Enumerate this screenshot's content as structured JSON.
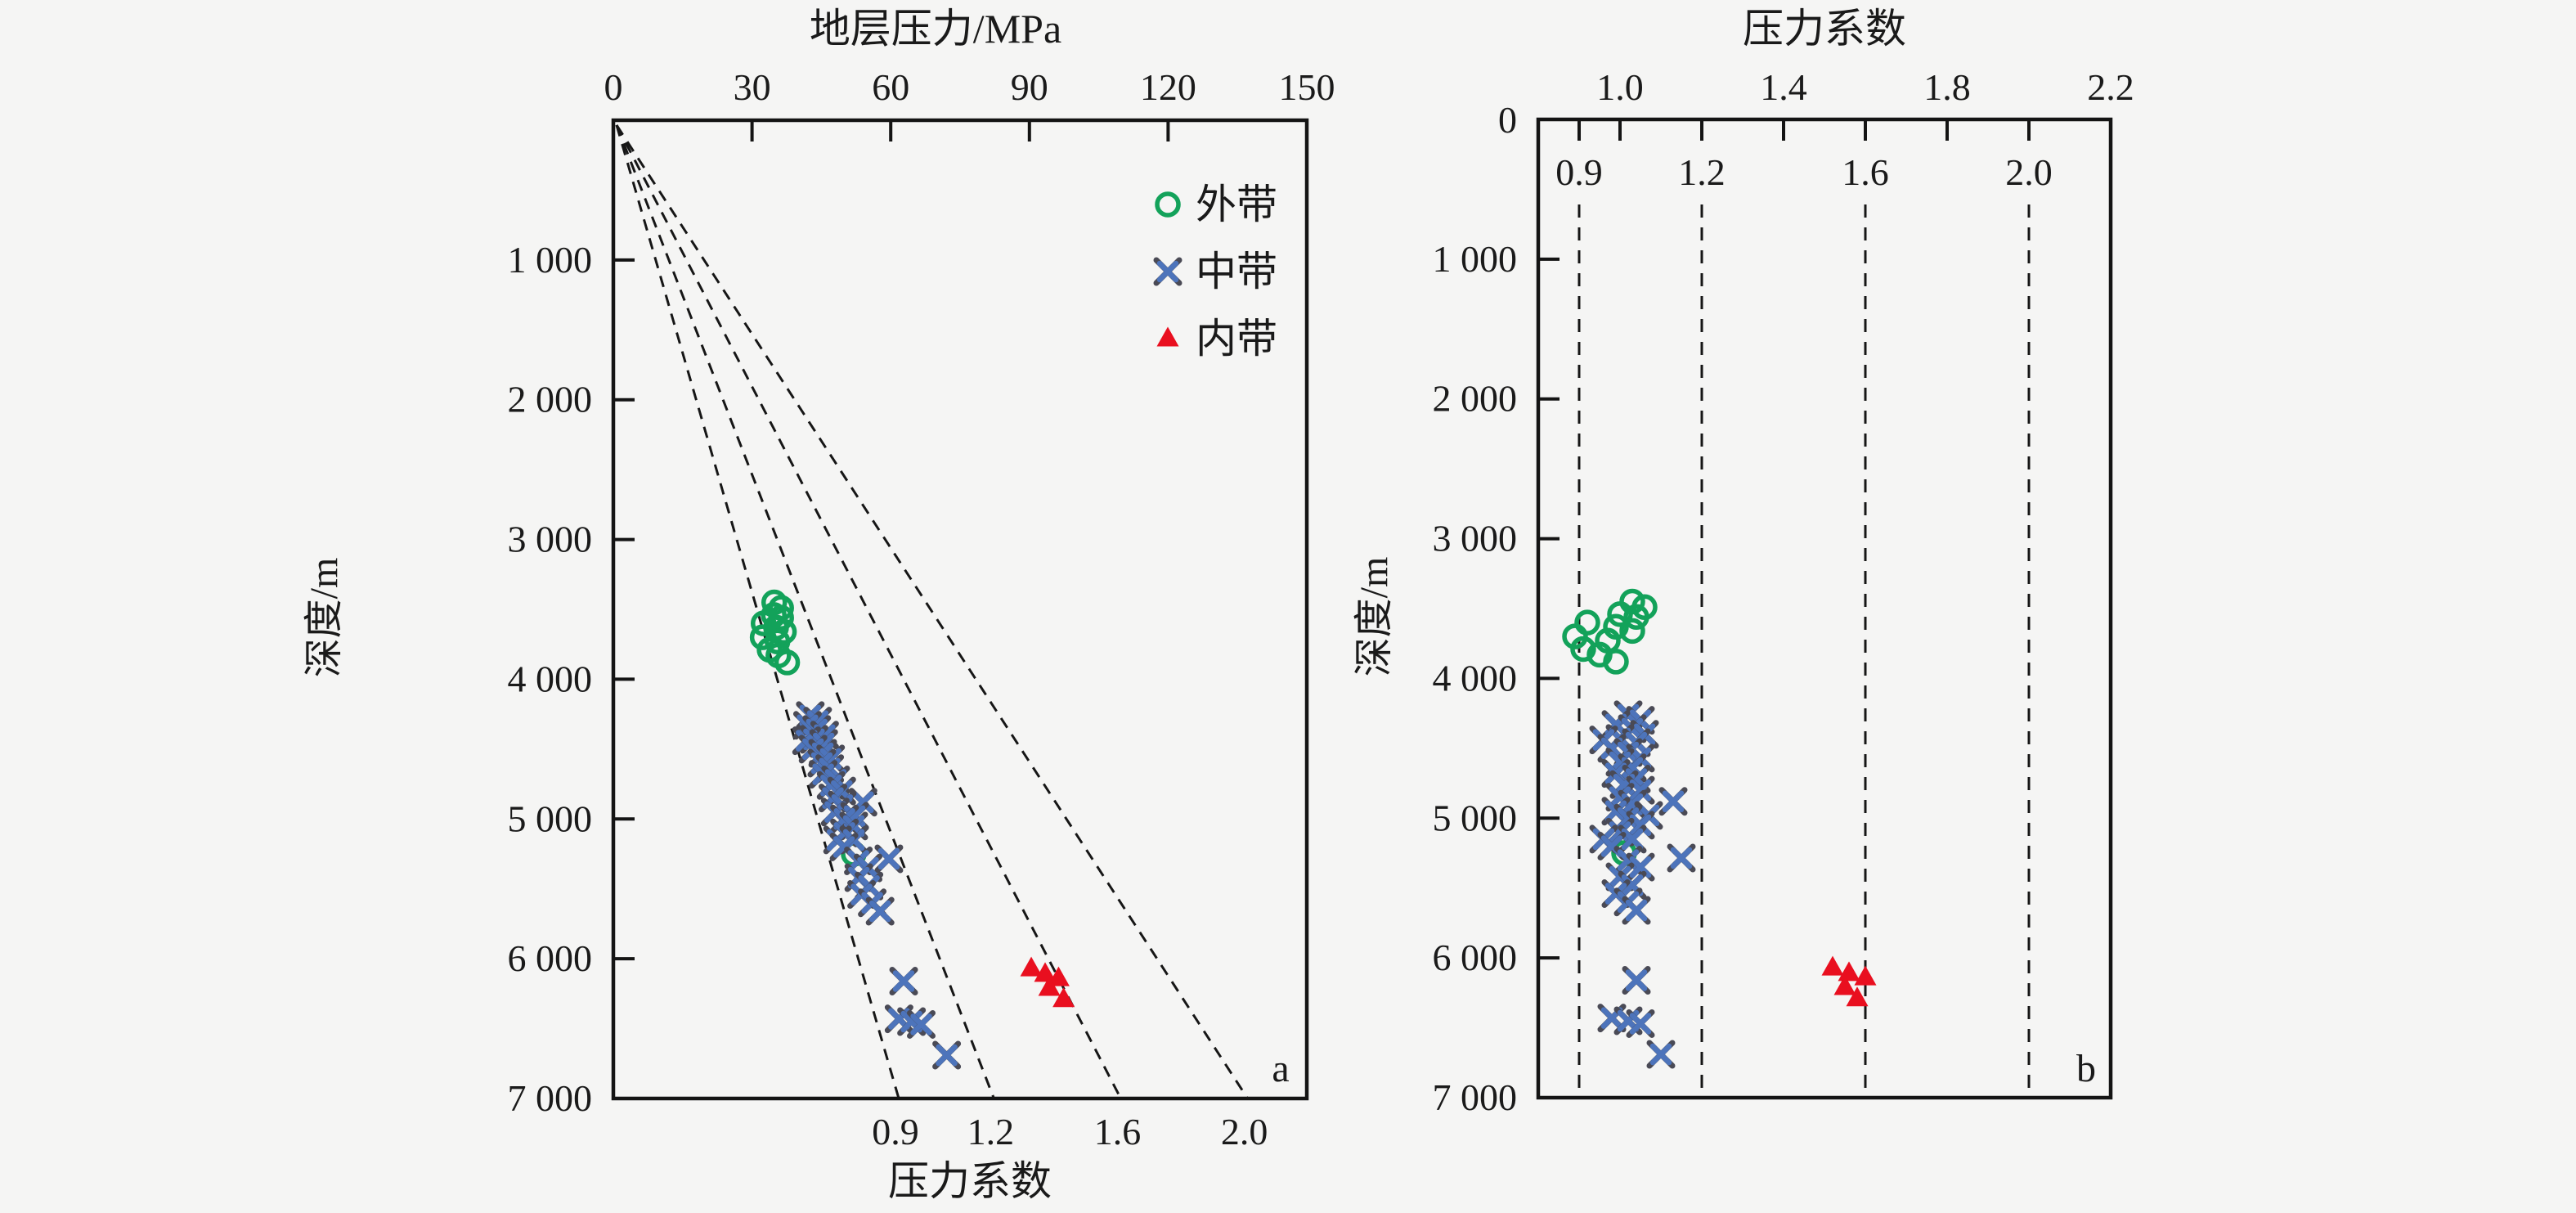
{
  "figure": {
    "background": "#f5f5f4",
    "text_color": "#1a1a1a",
    "axis_color": "#141414",
    "legend": {
      "items": [
        {
          "label": "外带",
          "marker": "circle",
          "color": "#13a25a"
        },
        {
          "label": "中带",
          "marker": "x",
          "color": "#4d74bb",
          "tip_color": "#4a4a55"
        },
        {
          "label": "内带",
          "marker": "triangle",
          "color": "#e90f1f"
        }
      ]
    }
  },
  "wells": {
    "outer": [
      {
        "depth_m": 3450,
        "coeff": 1.03,
        "pressure_mpa": 34.8
      },
      {
        "depth_m": 3490,
        "coeff": 1.06,
        "pressure_mpa": 36.3
      },
      {
        "depth_m": 3540,
        "coeff": 1.0,
        "pressure_mpa": 34.7
      },
      {
        "depth_m": 3560,
        "coeff": 1.04,
        "pressure_mpa": 36.3
      },
      {
        "depth_m": 3600,
        "coeff": 0.92,
        "pressure_mpa": 32.5
      },
      {
        "depth_m": 3630,
        "coeff": 0.99,
        "pressure_mpa": 35.2
      },
      {
        "depth_m": 3660,
        "coeff": 1.03,
        "pressure_mpa": 36.9
      },
      {
        "depth_m": 3700,
        "coeff": 0.89,
        "pressure_mpa": 32.3
      },
      {
        "depth_m": 3730,
        "coeff": 0.97,
        "pressure_mpa": 35.5
      },
      {
        "depth_m": 3790,
        "coeff": 0.91,
        "pressure_mpa": 33.8
      },
      {
        "depth_m": 3830,
        "coeff": 0.95,
        "pressure_mpa": 35.7
      },
      {
        "depth_m": 3880,
        "coeff": 0.99,
        "pressure_mpa": 37.6
      },
      {
        "depth_m": 5250,
        "coeff": 1.01,
        "pressure_mpa": 52.0
      }
    ],
    "middle": [
      {
        "depth_m": 4260,
        "coeff": 1.02,
        "pressure_mpa": 42.6
      },
      {
        "depth_m": 4300,
        "coeff": 1.05,
        "pressure_mpa": 44.2
      },
      {
        "depth_m": 4330,
        "coeff": 0.99,
        "pressure_mpa": 42.0
      },
      {
        "depth_m": 4360,
        "coeff": 1.03,
        "pressure_mpa": 44.0
      },
      {
        "depth_m": 4400,
        "coeff": 1.06,
        "pressure_mpa": 45.7
      },
      {
        "depth_m": 4430,
        "coeff": 1.0,
        "pressure_mpa": 43.4
      },
      {
        "depth_m": 4440,
        "coeff": 0.96,
        "pressure_mpa": 41.8
      },
      {
        "depth_m": 4460,
        "coeff": 1.04,
        "pressure_mpa": 45.5
      },
      {
        "depth_m": 4500,
        "coeff": 0.98,
        "pressure_mpa": 43.2
      },
      {
        "depth_m": 4530,
        "coeff": 1.02,
        "pressure_mpa": 45.3
      },
      {
        "depth_m": 4570,
        "coeff": 1.05,
        "pressure_mpa": 47.0
      },
      {
        "depth_m": 4600,
        "coeff": 1.0,
        "pressure_mpa": 45.1
      },
      {
        "depth_m": 4640,
        "coeff": 1.03,
        "pressure_mpa": 46.8
      },
      {
        "depth_m": 4680,
        "coeff": 0.99,
        "pressure_mpa": 45.4
      },
      {
        "depth_m": 4720,
        "coeff": 1.04,
        "pressure_mpa": 48.1
      },
      {
        "depth_m": 4760,
        "coeff": 1.01,
        "pressure_mpa": 47.1
      },
      {
        "depth_m": 4800,
        "coeff": 1.05,
        "pressure_mpa": 49.4
      },
      {
        "depth_m": 4850,
        "coeff": 1.0,
        "pressure_mpa": 47.5
      },
      {
        "depth_m": 4880,
        "coeff": 1.13,
        "pressure_mpa": 54.0
      },
      {
        "depth_m": 4900,
        "coeff": 1.03,
        "pressure_mpa": 49.5
      },
      {
        "depth_m": 4950,
        "coeff": 0.99,
        "pressure_mpa": 48.0
      },
      {
        "depth_m": 4980,
        "coeff": 1.07,
        "pressure_mpa": 52.2
      },
      {
        "depth_m": 5000,
        "coeff": 1.02,
        "pressure_mpa": 50.0
      },
      {
        "depth_m": 5050,
        "coeff": 1.05,
        "pressure_mpa": 52.0
      },
      {
        "depth_m": 5100,
        "coeff": 1.0,
        "pressure_mpa": 50.0
      },
      {
        "depth_m": 5150,
        "coeff": 0.96,
        "pressure_mpa": 48.5
      },
      {
        "depth_m": 5150,
        "coeff": 1.03,
        "pressure_mpa": 52.0
      },
      {
        "depth_m": 5200,
        "coeff": 0.98,
        "pressure_mpa": 49.9
      },
      {
        "depth_m": 5285,
        "coeff": 1.15,
        "pressure_mpa": 59.6
      },
      {
        "depth_m": 5300,
        "coeff": 1.02,
        "pressure_mpa": 53.0
      },
      {
        "depth_m": 5350,
        "coeff": 1.05,
        "pressure_mpa": 55.1
      },
      {
        "depth_m": 5420,
        "coeff": 1.0,
        "pressure_mpa": 53.1
      },
      {
        "depth_m": 5480,
        "coeff": 1.03,
        "pressure_mpa": 55.3
      },
      {
        "depth_m": 5540,
        "coeff": 0.99,
        "pressure_mpa": 53.7
      },
      {
        "depth_m": 5600,
        "coeff": 1.02,
        "pressure_mpa": 56.0
      },
      {
        "depth_m": 5660,
        "coeff": 1.04,
        "pressure_mpa": 57.7
      },
      {
        "depth_m": 6160,
        "coeff": 1.04,
        "pressure_mpa": 62.8
      },
      {
        "depth_m": 6430,
        "coeff": 0.98,
        "pressure_mpa": 61.8
      },
      {
        "depth_m": 6450,
        "coeff": 1.02,
        "pressure_mpa": 64.5
      },
      {
        "depth_m": 6470,
        "coeff": 1.05,
        "pressure_mpa": 66.6
      },
      {
        "depth_m": 6690,
        "coeff": 1.1,
        "pressure_mpa": 72.1
      }
    ],
    "inner": [
      {
        "depth_m": 6070,
        "coeff": 1.52,
        "pressure_mpa": 90.4
      },
      {
        "depth_m": 6110,
        "coeff": 1.56,
        "pressure_mpa": 93.4
      },
      {
        "depth_m": 6140,
        "coeff": 1.6,
        "pressure_mpa": 96.3
      },
      {
        "depth_m": 6210,
        "coeff": 1.55,
        "pressure_mpa": 94.3
      },
      {
        "depth_m": 6290,
        "coeff": 1.58,
        "pressure_mpa": 97.4
      }
    ]
  },
  "chart_data": [
    {
      "id": "a",
      "type": "scatter",
      "panel_label": "a",
      "top_axis": {
        "label": "地层压力/MPa",
        "ticks": [
          0,
          30,
          60,
          90,
          120,
          150
        ],
        "range": [
          0,
          150
        ]
      },
      "y_axis": {
        "label": "深度/m",
        "range": [
          0,
          7000
        ],
        "show_zero_label": false,
        "ticks": [
          {
            "v": 1000,
            "label": "1 000"
          },
          {
            "v": 2000,
            "label": "2 000"
          },
          {
            "v": 3000,
            "label": "3 000"
          },
          {
            "v": 4000,
            "label": "4 000"
          },
          {
            "v": 5000,
            "label": "5 000"
          },
          {
            "v": 6000,
            "label": "6 000"
          },
          {
            "v": 7000,
            "label": "7 000"
          }
        ]
      },
      "bottom_axis": {
        "label": "压力系数"
      },
      "guide_lines": {
        "style": "dashed",
        "coefficients": [
          0.9,
          1.2,
          1.6,
          2.0
        ],
        "labels": [
          "0.9",
          "1.2",
          "1.6",
          "2.0"
        ],
        "hydrostatic_gradient_mpa_per_m": 0.0098,
        "origin": "pressure 0 MPa at depth 0 m"
      },
      "series_x": "pressure_mpa",
      "legend_visible": true
    },
    {
      "id": "b",
      "type": "scatter",
      "panel_label": "b",
      "top_axis": {
        "label": "压力系数",
        "range": [
          0.8,
          2.2
        ],
        "major_ticks": [
          {
            "v": 1.0,
            "label": "1.0"
          },
          {
            "v": 1.4,
            "label": "1.4"
          },
          {
            "v": 1.8,
            "label": "1.8"
          },
          {
            "v": 2.2,
            "label": "2.2"
          }
        ],
        "minor_ticks": [
          0.9,
          1.0,
          1.2,
          1.4,
          1.6,
          1.8,
          2.0,
          2.2
        ]
      },
      "inner_vlines": {
        "style": "dashed",
        "values": [
          0.9,
          1.2,
          1.6,
          2.0
        ],
        "labels": [
          "0.9",
          "1.2",
          "1.6",
          "2.0"
        ]
      },
      "y_axis": {
        "label": "深度/m",
        "range": [
          0,
          7000
        ],
        "show_zero_label": true,
        "zero_label": "0",
        "ticks": [
          {
            "v": 1000,
            "label": "1 000"
          },
          {
            "v": 2000,
            "label": "2 000"
          },
          {
            "v": 3000,
            "label": "3 000"
          },
          {
            "v": 4000,
            "label": "4 000"
          },
          {
            "v": 5000,
            "label": "5 000"
          },
          {
            "v": 6000,
            "label": "6 000"
          },
          {
            "v": 7000,
            "label": "7 000"
          }
        ]
      },
      "series_x": "coeff",
      "legend_visible": false
    }
  ]
}
